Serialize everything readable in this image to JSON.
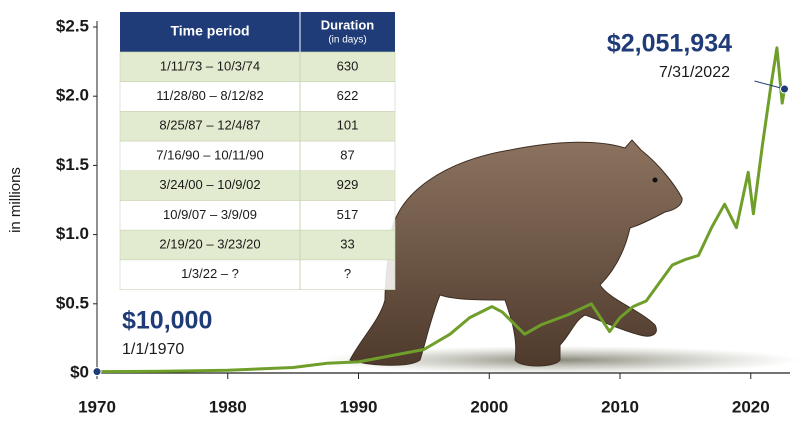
{
  "chart_data": {
    "type": "line",
    "y_label": "in millions",
    "x": [
      1970,
      1975,
      1980,
      1985,
      1987.6,
      1990,
      1995,
      1997,
      1998.5,
      2000.2,
      2001,
      2002.7,
      2004,
      2006,
      2007.8,
      2009.2,
      2010,
      2011,
      2012,
      2013,
      2014,
      2015,
      2016,
      2017,
      2018,
      2018.9,
      2019.8,
      2020.2,
      2020.9,
      2021.5,
      2022.0,
      2022.4,
      2022.58
    ],
    "values": [
      0.01,
      0.012,
      0.02,
      0.04,
      0.07,
      0.08,
      0.17,
      0.28,
      0.4,
      0.48,
      0.44,
      0.28,
      0.35,
      0.42,
      0.5,
      0.3,
      0.4,
      0.48,
      0.52,
      0.65,
      0.78,
      0.82,
      0.85,
      1.05,
      1.22,
      1.05,
      1.45,
      1.15,
      1.65,
      2.05,
      2.35,
      1.95,
      2.051934
    ],
    "color": "#6f9f2a",
    "xlim": [
      1970,
      2023
    ],
    "xticks": [
      1970,
      1980,
      1990,
      2000,
      2010,
      2020
    ],
    "ylim": [
      0,
      2.5
    ],
    "yticks": [
      {
        "value": 0,
        "label": "$0"
      },
      {
        "value": 0.5,
        "label": "$0.5"
      },
      {
        "value": 1,
        "label": "$1.0"
      },
      {
        "value": 1.5,
        "label": "$1.5"
      },
      {
        "value": 2,
        "label": "$2.0"
      },
      {
        "value": 2.5,
        "label": "$2.5"
      }
    ],
    "grid": false,
    "annotations": [
      {
        "text": "$10,000",
        "date": "1/1/1970"
      },
      {
        "text": "$2,051,934",
        "date": "7/31/2022"
      }
    ]
  },
  "table": {
    "header": {
      "period": "Time period",
      "duration": "Duration",
      "duration_note": "(in days)"
    },
    "rows": [
      [
        "1/11/73 – 10/3/74",
        630
      ],
      [
        "11/28/80 – 8/12/82",
        622
      ],
      [
        "8/25/87 – 12/4/87",
        101
      ],
      [
        "7/16/90 – 10/11/90",
        87
      ],
      [
        "3/24/00 – 10/9/02",
        929
      ],
      [
        "10/9/07 – 3/9/09",
        517
      ],
      [
        "2/19/20 – 3/23/20",
        33
      ],
      [
        "1/3/22 – ?",
        "?"
      ]
    ]
  }
}
